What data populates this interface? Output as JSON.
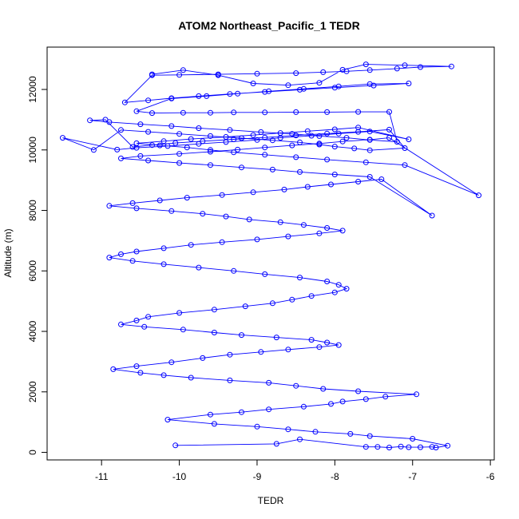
{
  "chart_data": {
    "type": "line",
    "title": "ATOM2 Northeast_Pacific_1 TEDR",
    "xlabel": "TEDR",
    "ylabel": "Altitude (m)",
    "xlim": [
      -11.7,
      -5.95
    ],
    "ylim": [
      -250,
      13400
    ],
    "xticks": [
      -11,
      -10,
      -9,
      -8,
      -7,
      -6
    ],
    "yticks": [
      0,
      2000,
      4000,
      6000,
      8000,
      10000,
      12000
    ],
    "grid": false,
    "markers": "open-circle",
    "colors": {
      "series": "#0000ff",
      "axis": "#000000"
    },
    "series": [
      {
        "x": [
          -10.05,
          -8.75,
          -8.45,
          -7.6,
          -7.45,
          -7.3,
          -7.15,
          -7.05,
          -6.9,
          -6.75,
          -6.7,
          -6.55,
          -7.0,
          -7.55,
          -7.8,
          -8.25,
          -8.6,
          -9.0,
          -9.55,
          -10.15,
          -9.6,
          -9.2,
          -8.85,
          -8.4,
          -8.05,
          -7.9,
          -7.6,
          -7.35,
          -6.95,
          -7.7,
          -8.15,
          -8.5,
          -8.85,
          -9.35,
          -9.85,
          -10.2,
          -10.5,
          -10.85,
          -10.55,
          -10.1,
          -9.7,
          -9.35,
          -8.95,
          -8.6,
          -8.2,
          -7.95,
          -8.1,
          -8.3,
          -8.75,
          -9.2,
          -9.55,
          -9.95,
          -10.45,
          -10.75,
          -10.55,
          -10.4,
          -10.0,
          -9.55,
          -9.15,
          -8.8,
          -8.55,
          -8.3,
          -8.0,
          -7.85,
          -7.95,
          -8.1,
          -8.45,
          -8.9,
          -9.3,
          -9.75,
          -10.2,
          -10.6,
          -10.9,
          -10.75,
          -10.55,
          -10.2,
          -9.85,
          -9.45,
          -9.0,
          -8.6,
          -8.2,
          -7.9,
          -8.1,
          -8.4,
          -8.7,
          -9.1,
          -9.4,
          -9.7,
          -10.1,
          -10.55,
          -10.9,
          -10.6,
          -10.25,
          -9.9,
          -9.45,
          -9.05,
          -8.65,
          -8.35,
          -8.05,
          -7.7,
          -7.4,
          -6.75,
          -7.55,
          -8.0,
          -8.45,
          -8.8,
          -9.2,
          -9.6,
          -10.0,
          -10.4,
          -10.75,
          -10.5,
          -10.0,
          -9.6,
          -9.25,
          -8.9,
          -8.55,
          -8.2,
          -7.9,
          -7.55,
          -7.3,
          -6.15,
          -7.1,
          -7.6,
          -8.1,
          -8.5,
          -8.9,
          -9.3,
          -9.6,
          -9.9,
          -10.25,
          -10.55,
          -10.2,
          -9.85,
          -9.4,
          -9.05,
          -8.7,
          -8.35,
          -8.0,
          -7.7,
          -7.05,
          -7.55,
          -7.95,
          -8.3,
          -8.7,
          -9.0,
          -9.4,
          -9.75,
          -10.15,
          -10.55,
          -10.8,
          -11.5,
          -11.1,
          -10.75,
          -10.4,
          -10.0,
          -9.6,
          -9.2,
          -8.8,
          -8.45,
          -8.2,
          -8.0,
          -7.75,
          -7.55,
          -7.1,
          -7.3,
          -7.7,
          -8.1,
          -8.5,
          -8.9,
          -9.3,
          -9.7,
          -10.05,
          -10.35,
          -10.6,
          -10.95,
          -11.15,
          -10.9,
          -10.5,
          -10.1,
          -9.75,
          -9.35,
          -8.95,
          -8.55,
          -8.2,
          -7.85,
          -7.55,
          -7.2,
          -7.3,
          -7.7,
          -8.1,
          -8.5,
          -8.9,
          -9.3,
          -9.6,
          -9.95,
          -10.35,
          -10.55,
          -10.1,
          -9.65,
          -9.25,
          -8.85,
          -8.4,
          -7.95,
          -7.55,
          -7.05,
          -7.5,
          -8.0,
          -8.45,
          -8.9,
          -9.35,
          -9.75,
          -10.1,
          -10.4,
          -10.7,
          -10.35,
          -10.0,
          -9.5,
          -9.0,
          -8.5,
          -8.15,
          -7.85,
          -7.55,
          -7.2,
          -6.9,
          -6.5,
          -7.1,
          -7.6,
          -7.9,
          -8.2,
          -8.6,
          -9.05,
          -9.5,
          -9.95,
          -10.35
        ],
        "y": [
          230,
          280,
          430,
          180,
          180,
          160,
          190,
          170,
          170,
          180,
          160,
          220,
          450,
          540,
          610,
          680,
          760,
          850,
          940,
          1080,
          1250,
          1330,
          1420,
          1510,
          1600,
          1680,
          1760,
          1840,
          1920,
          2020,
          2100,
          2200,
          2300,
          2380,
          2470,
          2550,
          2630,
          2750,
          2850,
          2980,
          3120,
          3230,
          3320,
          3400,
          3480,
          3550,
          3630,
          3720,
          3800,
          3880,
          3960,
          4060,
          4150,
          4230,
          4360,
          4480,
          4610,
          4720,
          4830,
          4930,
          5050,
          5170,
          5290,
          5410,
          5540,
          5650,
          5780,
          5890,
          6000,
          6110,
          6220,
          6330,
          6440,
          6550,
          6640,
          6750,
          6860,
          6950,
          7040,
          7140,
          7240,
          7330,
          7420,
          7520,
          7610,
          7700,
          7800,
          7890,
          7980,
          8070,
          8150,
          8240,
          8330,
          8420,
          8510,
          8600,
          8690,
          8780,
          8860,
          8950,
          9030,
          7830,
          9110,
          9190,
          9270,
          9350,
          9420,
          9500,
          9570,
          9650,
          9720,
          9800,
          9870,
          9940,
          10010,
          10080,
          10150,
          10210,
          10280,
          10340,
          10400,
          8500,
          9500,
          9590,
          9680,
          9760,
          9840,
          9920,
          10000,
          10080,
          10150,
          10220,
          10290,
          10360,
          10430,
          10490,
          10560,
          10620,
          10680,
          10740,
          10350,
          10610,
          10540,
          10470,
          10400,
          10330,
          10260,
          10200,
          10130,
          10070,
          10010,
          10400,
          10000,
          10660,
          10600,
          10530,
          10460,
          10390,
          10320,
          10250,
          10180,
          10110,
          10050,
          9990,
          10060,
          10670,
          10600,
          10540,
          10480,
          10410,
          10350,
          10290,
          10230,
          10160,
          10100,
          11000,
          10980,
          10920,
          10850,
          10790,
          10720,
          10660,
          10590,
          10530,
          10460,
          10400,
          10330,
          10270,
          11260,
          11260,
          11250,
          11250,
          11240,
          11240,
          11230,
          11230,
          11220,
          11280,
          11700,
          11780,
          11860,
          11940,
          12020,
          12100,
          12180,
          12200,
          12130,
          12060,
          11990,
          11920,
          11850,
          11780,
          11710,
          11640,
          11570,
          12470,
          12480,
          12500,
          12520,
          12540,
          12570,
          12600,
          12640,
          12690,
          12740,
          12760,
          12800,
          12830,
          12650,
          12220,
          12140,
          12200,
          12470,
          12640,
          12500
        ]
      }
    ]
  }
}
